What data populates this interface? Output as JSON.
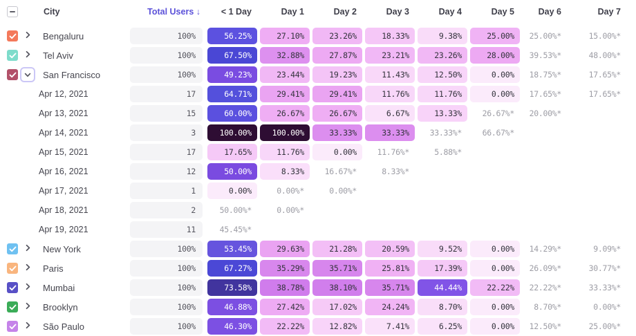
{
  "table": {
    "header": {
      "select_all_state": "indeterminate",
      "columns": [
        "City",
        "Total Users ↓",
        "< 1 Day",
        "Day 1",
        "Day 2",
        "Day 3",
        "Day 4",
        "Day 5",
        "Day 6",
        "Day 7"
      ]
    },
    "rows": [
      {
        "type": "city",
        "label": "Bengaluru",
        "checked": true,
        "checkbox_color": "#F4795B",
        "expanded": false,
        "total": "100%",
        "cells": [
          "56.25%",
          "27.10%",
          "23.26%",
          "18.33%",
          "9.38%",
          "25.00%",
          "25.00%*",
          "15.00%*"
        ]
      },
      {
        "type": "city",
        "label": "Tel Aviv",
        "checked": true,
        "checkbox_color": "#7EDCCB",
        "expanded": false,
        "total": "100%",
        "cells": [
          "67.50%",
          "32.88%",
          "27.87%",
          "23.21%",
          "23.26%",
          "28.00%",
          "39.53%*",
          "48.00%*"
        ]
      },
      {
        "type": "city",
        "label": "San Francisco",
        "checked": true,
        "checkbox_color": "#B25169",
        "expanded": true,
        "total": "100%",
        "cells": [
          "49.23%",
          "23.44%",
          "19.23%",
          "11.43%",
          "12.50%",
          "0.00%",
          "18.75%*",
          "17.65%*"
        ]
      },
      {
        "type": "date",
        "label": "Apr 12, 2021",
        "total": "17",
        "cells": [
          "64.71%",
          "29.41%",
          "29.41%",
          "11.76%",
          "11.76%",
          "0.00%",
          "17.65%*",
          "17.65%*"
        ]
      },
      {
        "type": "date",
        "label": "Apr 13, 2021",
        "total": "15",
        "cells": [
          "60.00%",
          "26.67%",
          "26.67%",
          "6.67%",
          "13.33%",
          "26.67%*",
          "20.00%*",
          ""
        ]
      },
      {
        "type": "date",
        "label": "Apr 14, 2021",
        "total": "3",
        "cells": [
          "100.00%",
          "100.00%",
          "33.33%",
          "33.33%",
          "33.33%*",
          "66.67%*",
          "",
          ""
        ]
      },
      {
        "type": "date",
        "label": "Apr 15, 2021",
        "total": "17",
        "cells": [
          "17.65%",
          "11.76%",
          "0.00%",
          "11.76%*",
          "5.88%*",
          "",
          "",
          ""
        ]
      },
      {
        "type": "date",
        "label": "Apr 16, 2021",
        "total": "12",
        "cells": [
          "50.00%",
          "8.33%",
          "16.67%*",
          "8.33%*",
          "",
          "",
          "",
          ""
        ]
      },
      {
        "type": "date",
        "label": "Apr 17, 2021",
        "total": "1",
        "cells": [
          "0.00%",
          "0.00%*",
          "0.00%*",
          "",
          "",
          "",
          "",
          ""
        ]
      },
      {
        "type": "date",
        "label": "Apr 18, 2021",
        "total": "2",
        "cells": [
          "50.00%*",
          "0.00%*",
          "",
          "",
          "",
          "",
          "",
          ""
        ]
      },
      {
        "type": "date",
        "label": "Apr 19, 2021",
        "total": "11",
        "cells": [
          "45.45%*",
          "",
          "",
          "",
          "",
          "",
          "",
          ""
        ]
      },
      {
        "type": "city",
        "label": "New York",
        "checked": true,
        "checkbox_color": "#6FC1F1",
        "expanded": false,
        "total": "100%",
        "cells": [
          "53.45%",
          "29.63%",
          "21.28%",
          "20.59%",
          "9.52%",
          "0.00%",
          "14.29%*",
          "9.09%*"
        ]
      },
      {
        "type": "city",
        "label": "Paris",
        "checked": true,
        "checkbox_color": "#F9B57E",
        "expanded": false,
        "total": "100%",
        "cells": [
          "67.27%",
          "35.29%",
          "35.71%",
          "25.81%",
          "17.39%",
          "0.00%",
          "26.09%*",
          "30.77%*"
        ]
      },
      {
        "type": "city",
        "label": "Mumbai",
        "checked": true,
        "checkbox_color": "#5850C6",
        "expanded": false,
        "total": "100%",
        "cells": [
          "73.58%",
          "38.78%",
          "38.10%",
          "35.71%",
          "44.44%",
          "22.22%",
          "22.22%*",
          "33.33%*"
        ]
      },
      {
        "type": "city",
        "label": "Brooklyn",
        "checked": true,
        "checkbox_color": "#3BAC58",
        "expanded": false,
        "total": "100%",
        "cells": [
          "46.88%",
          "27.42%",
          "17.02%",
          "24.24%",
          "8.70%",
          "0.00%",
          "8.70%*",
          "0.00%*"
        ]
      },
      {
        "type": "city",
        "label": "São Paulo",
        "checked": true,
        "checkbox_color": "#C583E9",
        "expanded": false,
        "total": "100%",
        "cells": [
          "46.30%",
          "22.22%",
          "12.82%",
          "7.41%",
          "6.25%",
          "0.00%",
          "12.50%*",
          "25.00%*"
        ]
      }
    ],
    "incomplete_marker": "*"
  },
  "colors": {
    "scale_stops": [
      [
        0,
        "#FBEBFB"
      ],
      [
        7,
        "#FAE2FA"
      ],
      [
        10,
        "#F9DBF9"
      ],
      [
        13,
        "#F8D4F9"
      ],
      [
        18,
        "#F5C8F7"
      ],
      [
        22,
        "#F2BCF6"
      ],
      [
        27,
        "#EFADF4"
      ],
      [
        30,
        "#E9A2F2"
      ],
      [
        33,
        "#DD8FEF"
      ],
      [
        36,
        "#D685ED"
      ],
      [
        41,
        "#CB75EB"
      ],
      [
        42,
        "#8A5BEC"
      ],
      [
        46,
        "#7C50E3"
      ],
      [
        50,
        "#7A4BE0"
      ],
      [
        54,
        "#6355DE"
      ],
      [
        57,
        "#5A50E0"
      ],
      [
        61,
        "#5B50DF"
      ],
      [
        65,
        "#5350DC"
      ],
      [
        68,
        "#4845D4"
      ],
      [
        74,
        "#41339A"
      ],
      [
        86,
        "#351C55"
      ],
      [
        100,
        "#2E0D33"
      ]
    ],
    "white_text_threshold": 42,
    "pill_text_dark": "#33333C",
    "incomplete_text": "#9D9DA5",
    "total_pill_bg": "#F4F4F6",
    "total_pill_text": "#55555E",
    "header_text": "#3F3F4A",
    "sorted_header_text": "#5B51D9",
    "label_text": "#45454E",
    "expand_ring": "#CBC7F6"
  }
}
